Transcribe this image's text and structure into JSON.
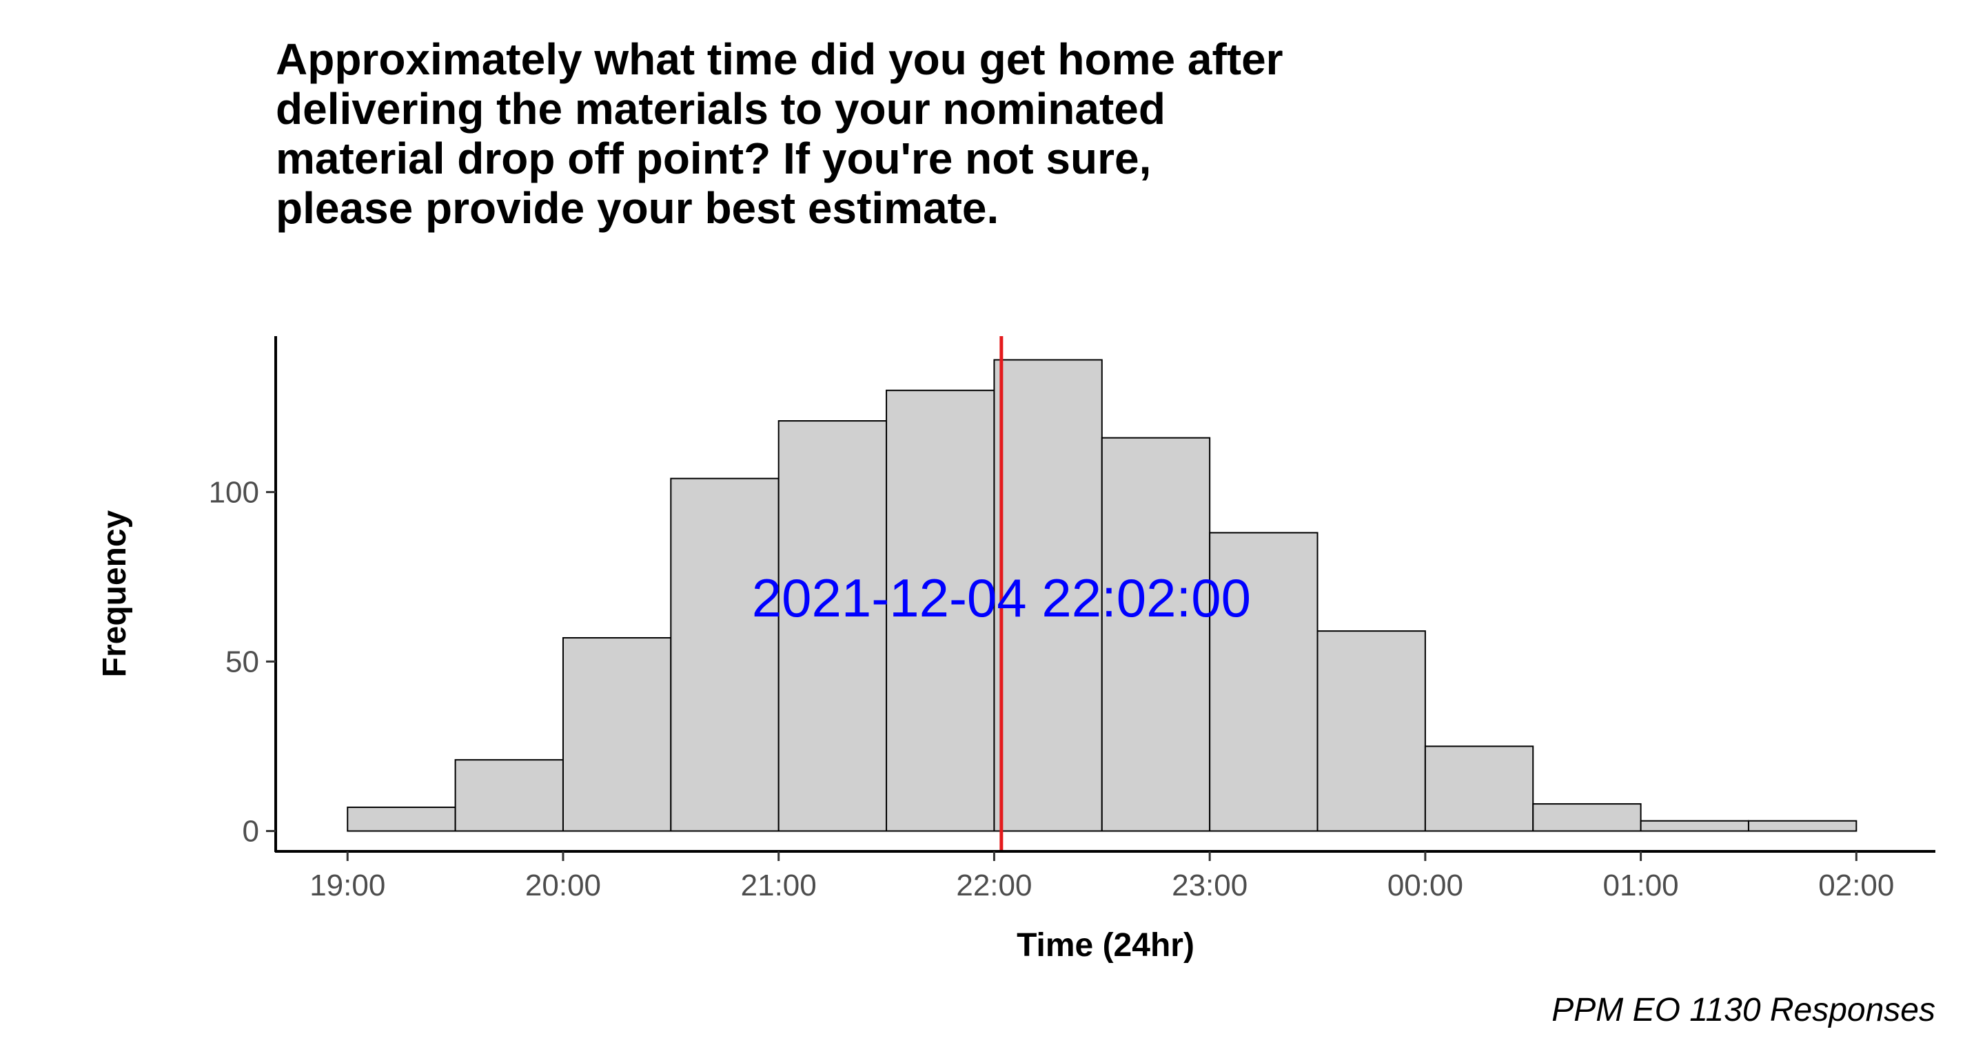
{
  "chart_data": {
    "type": "bar",
    "title_lines": [
      "Approximately what time did you get home after",
      "delivering the materials to your nominated",
      "material drop off point? If you're not sure,",
      "please provide your best estimate."
    ],
    "xlabel": "Time (24hr)",
    "ylabel": "Frequency",
    "caption": "PPM EO 1130 Responses",
    "x_ticks": [
      "19:00",
      "20:00",
      "21:00",
      "22:00",
      "23:00",
      "00:00",
      "01:00",
      "02:00"
    ],
    "y_ticks": [
      0,
      50,
      100
    ],
    "bins": [
      {
        "start": "19:00",
        "end": "19:30",
        "count": 7
      },
      {
        "start": "19:30",
        "end": "20:00",
        "count": 21
      },
      {
        "start": "20:00",
        "end": "20:30",
        "count": 57
      },
      {
        "start": "20:30",
        "end": "21:00",
        "count": 104
      },
      {
        "start": "21:00",
        "end": "21:30",
        "count": 121
      },
      {
        "start": "21:30",
        "end": "22:00",
        "count": 130
      },
      {
        "start": "22:00",
        "end": "22:30",
        "count": 139
      },
      {
        "start": "22:30",
        "end": "23:00",
        "count": 116
      },
      {
        "start": "23:00",
        "end": "23:30",
        "count": 88
      },
      {
        "start": "23:30",
        "end": "00:00",
        "count": 59
      },
      {
        "start": "00:00",
        "end": "00:30",
        "count": 25
      },
      {
        "start": "00:30",
        "end": "01:00",
        "count": 8
      },
      {
        "start": "01:00",
        "end": "01:30",
        "count": 3
      },
      {
        "start": "01:30",
        "end": "02:00",
        "count": 3
      }
    ],
    "mean_line": {
      "value": "2021-12-04 22:02:00",
      "label": "2021-12-04 22:02:00",
      "color": "#e41a1c",
      "label_color": "#0000ff"
    },
    "xlim": [
      "18:40",
      "02:22"
    ],
    "ylim": [
      -6,
      146
    ],
    "bar_fill": "#d0d0d0",
    "bar_stroke": "#000000",
    "grid": false
  }
}
